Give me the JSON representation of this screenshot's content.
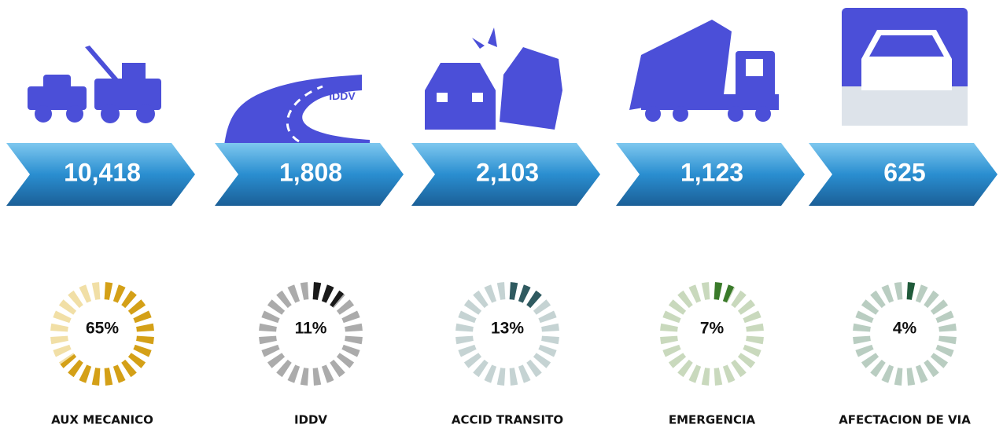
{
  "chart_data": {
    "type": "gauge",
    "categories": [
      "AUX MECANICO",
      "IDDV",
      "ACCID TRANSITO",
      "EMERGENCIA",
      "AFECTACION DE VIA"
    ],
    "totals": [
      "10,418",
      "1,808",
      "2,103",
      "1,123",
      "625"
    ],
    "values": [
      65,
      11,
      13,
      7,
      4
    ],
    "value_labels": [
      "65%",
      "11%",
      "13%",
      "7%",
      "4%"
    ],
    "icon_text": "IDDV",
    "colors": [
      "#d4a017",
      "#1a1a1a",
      "#2f5a60",
      "#3a7a2a",
      "#1f5a3a"
    ],
    "track_colors": [
      "#f1dfa6",
      "#ababab",
      "#c5d3d3",
      "#c9d9bd",
      "#b9cdc1"
    ]
  }
}
